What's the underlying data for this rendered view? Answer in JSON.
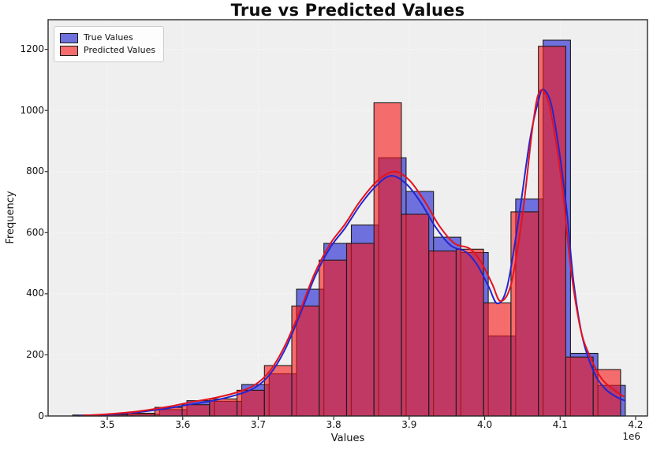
{
  "chart_data": {
    "type": "histogram+kde",
    "title": "True vs Predicted Values",
    "xlabel": "Values",
    "ylabel": "Frequency",
    "x_axis_offset_label": "1e6",
    "xlim": [
      3.4216,
      4.2157
    ],
    "ylim": [
      0,
      1297
    ],
    "x_ticks": {
      "values": [
        3.5,
        3.6,
        3.7,
        3.8,
        3.9,
        4.0,
        4.1,
        4.2
      ],
      "labels": [
        "3.5",
        "3.6",
        "3.7",
        "3.8",
        "3.9",
        "4.0",
        "4.1",
        "4.2"
      ]
    },
    "y_ticks": {
      "values": [
        0,
        200,
        400,
        600,
        800,
        1000,
        1200
      ],
      "labels": [
        "0",
        "200",
        "400",
        "600",
        "800",
        "1000",
        "1200"
      ]
    },
    "grid": true,
    "legend_position": "upper left",
    "bin_edges_e6": [
      3.4572,
      3.4935,
      3.5298,
      3.5661,
      3.6024,
      3.6387,
      3.675,
      3.7113,
      3.7476,
      3.7839,
      3.8202,
      3.8565,
      3.8928,
      3.9291,
      3.9654,
      4.0017,
      4.038,
      4.0743,
      4.1106,
      4.1469,
      4.1832
    ],
    "series": [
      {
        "name": "True Values",
        "fill_color": "#6E70DD",
        "line_color": "#2525CE",
        "edge_color": "#1b1b1b",
        "counts": [
          2,
          4,
          6,
          21,
          50,
          48,
          103,
          138,
          415,
          565,
          625,
          845,
          735,
          585,
          535,
          262,
          710,
          1230,
          205,
          100
        ],
        "kde": [
          [
            3.462,
            1
          ],
          [
            3.5,
            4
          ],
          [
            3.54,
            12
          ],
          [
            3.58,
            25
          ],
          [
            3.61,
            38
          ],
          [
            3.64,
            50
          ],
          [
            3.67,
            68
          ],
          [
            3.695,
            92
          ],
          [
            3.715,
            135
          ],
          [
            3.735,
            215
          ],
          [
            3.755,
            330
          ],
          [
            3.775,
            455
          ],
          [
            3.795,
            550
          ],
          [
            3.815,
            615
          ],
          [
            3.835,
            690
          ],
          [
            3.855,
            750
          ],
          [
            3.875,
            786
          ],
          [
            3.895,
            762
          ],
          [
            3.915,
            700
          ],
          [
            3.935,
            618
          ],
          [
            3.955,
            558
          ],
          [
            3.975,
            537
          ],
          [
            3.99,
            495
          ],
          [
            4.005,
            425
          ],
          [
            4.017,
            368
          ],
          [
            4.03,
            425
          ],
          [
            4.045,
            645
          ],
          [
            4.06,
            905
          ],
          [
            4.072,
            1040
          ],
          [
            4.078,
            1068
          ],
          [
            4.088,
            1022
          ],
          [
            4.098,
            880
          ],
          [
            4.108,
            690
          ],
          [
            4.118,
            435
          ],
          [
            4.13,
            252
          ],
          [
            4.145,
            142
          ],
          [
            4.16,
            88
          ],
          [
            4.175,
            62
          ],
          [
            4.186,
            50
          ]
        ]
      },
      {
        "name": "Predicted Values",
        "fill_color": "rgba(247,20,20,0.60)",
        "swatch_color": "#F46C6C",
        "line_color": "#E4121E",
        "edge_color": "#1b1b1b",
        "counts": [
          3,
          5,
          9,
          28,
          37,
          56,
          84,
          165,
          360,
          510,
          565,
          1025,
          660,
          540,
          546,
          370,
          668,
          1210,
          193,
          152
        ],
        "kde": [
          [
            3.468,
            2
          ],
          [
            3.5,
            6
          ],
          [
            3.54,
            15
          ],
          [
            3.58,
            30
          ],
          [
            3.61,
            45
          ],
          [
            3.64,
            58
          ],
          [
            3.67,
            76
          ],
          [
            3.695,
            101
          ],
          [
            3.715,
            146
          ],
          [
            3.735,
            228
          ],
          [
            3.755,
            342
          ],
          [
            3.775,
            468
          ],
          [
            3.795,
            562
          ],
          [
            3.815,
            628
          ],
          [
            3.835,
            703
          ],
          [
            3.858,
            770
          ],
          [
            3.88,
            800
          ],
          [
            3.9,
            772
          ],
          [
            3.92,
            705
          ],
          [
            3.94,
            622
          ],
          [
            3.96,
            565
          ],
          [
            3.98,
            548
          ],
          [
            3.995,
            505
          ],
          [
            4.01,
            432
          ],
          [
            4.021,
            376
          ],
          [
            4.035,
            432
          ],
          [
            4.05,
            655
          ],
          [
            4.064,
            955
          ],
          [
            4.073,
            1063
          ],
          [
            4.084,
            1032
          ],
          [
            4.094,
            905
          ],
          [
            4.104,
            725
          ],
          [
            4.114,
            485
          ],
          [
            4.127,
            285
          ],
          [
            4.14,
            192
          ],
          [
            4.155,
            122
          ],
          [
            4.17,
            88
          ],
          [
            4.184,
            64
          ]
        ]
      }
    ],
    "style": {
      "plot_background": "#EFEFEF",
      "grid_color": "#FFFFFF",
      "spine_color": "#2b2b2b",
      "overlap_color_observed": "#A63E7A",
      "title_color": "#0e0e0e"
    }
  }
}
